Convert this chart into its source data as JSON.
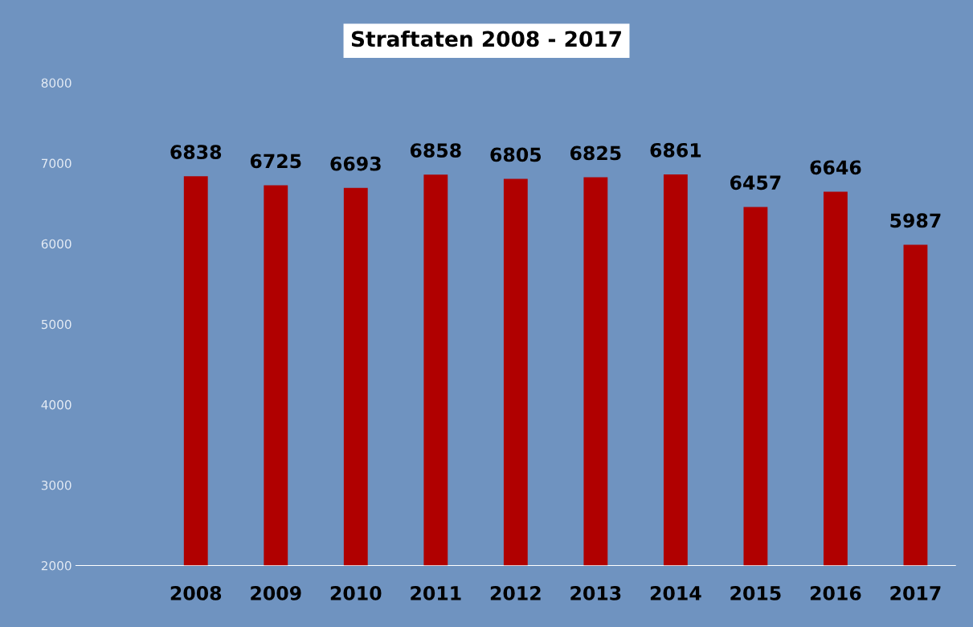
{
  "chart_data": {
    "type": "bar",
    "title": "Straftaten 2008 - 2017",
    "categories": [
      null,
      "2008",
      "2009",
      "2010",
      "2011",
      "2012",
      "2013",
      "2014",
      "2015",
      "2016",
      "2017"
    ],
    "values": [
      null,
      6838,
      6725,
      6693,
      6858,
      6805,
      6825,
      6861,
      6457,
      6646,
      5987
    ],
    "color": "#b00000",
    "ylim": [
      2000,
      8000
    ],
    "yticks": [
      2000,
      3000,
      4000,
      5000,
      6000,
      7000,
      8000
    ],
    "data_labels": true,
    "grid": false,
    "legend": false
  }
}
